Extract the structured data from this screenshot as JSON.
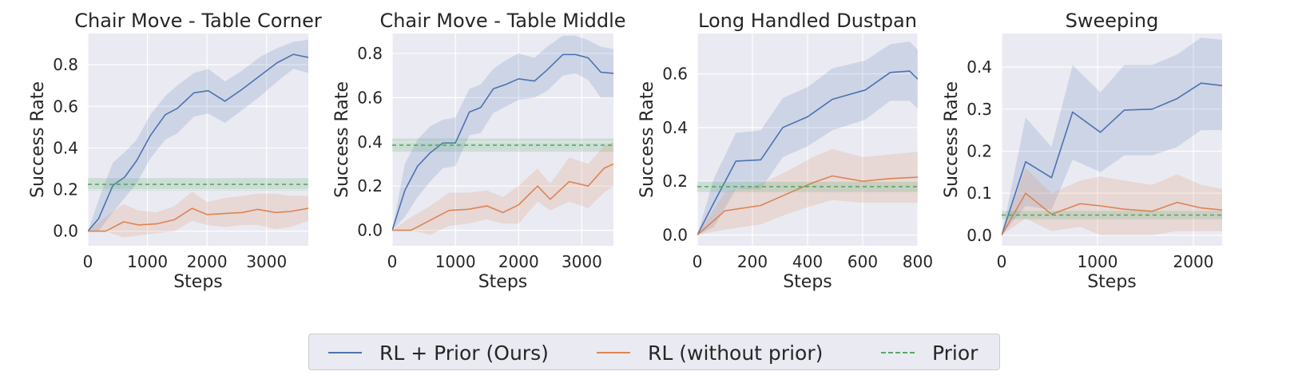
{
  "colors": {
    "rl_prior": "#4c72b0",
    "rl_no_prior": "#dd8452",
    "prior": "#55a868",
    "panel_bg": "#eaeaf2",
    "grid": "#ffffff",
    "text": "#262626"
  },
  "legend": {
    "items": [
      {
        "label": "RL + Prior (Ours)",
        "style": "solid",
        "color": "#4c72b0"
      },
      {
        "label": "RL (without prior)",
        "style": "solid",
        "color": "#dd8452"
      },
      {
        "label": "Prior",
        "style": "dashed",
        "color": "#55a868"
      }
    ]
  },
  "chart_data": [
    {
      "type": "line",
      "title": "Chair Move - Table Corner",
      "xlabel": "Steps",
      "ylabel": "Success Rate",
      "xlim": [
        0,
        3700
      ],
      "ylim": [
        -0.07,
        0.95
      ],
      "xticks": [
        0,
        1000,
        2000,
        3000
      ],
      "yticks": [
        0.0,
        0.2,
        0.4,
        0.6,
        0.8
      ],
      "ytick_labels": [
        "0.0",
        "0.2",
        "0.4",
        "0.6",
        "0.8"
      ],
      "grid": true,
      "series": [
        {
          "name": "RL + Prior (Ours)",
          "x": [
            0,
            180,
            420,
            620,
            820,
            1050,
            1300,
            1500,
            1780,
            2020,
            2300,
            2580,
            2900,
            3180,
            3450,
            3700
          ],
          "y": [
            0.0,
            0.06,
            0.22,
            0.26,
            0.34,
            0.46,
            0.56,
            0.59,
            0.665,
            0.675,
            0.625,
            0.68,
            0.75,
            0.81,
            0.85,
            0.835
          ],
          "lower": [
            0.0,
            0.0,
            0.09,
            0.16,
            0.23,
            0.35,
            0.44,
            0.47,
            0.55,
            0.565,
            0.52,
            0.58,
            0.65,
            0.72,
            0.78,
            0.76
          ],
          "upper": [
            0.0,
            0.15,
            0.33,
            0.38,
            0.44,
            0.56,
            0.65,
            0.7,
            0.76,
            0.78,
            0.72,
            0.77,
            0.84,
            0.88,
            0.91,
            0.92
          ]
        },
        {
          "name": "RL (without prior)",
          "x": [
            0,
            300,
            600,
            850,
            1150,
            1450,
            1750,
            2000,
            2300,
            2600,
            2850,
            3150,
            3400,
            3700
          ],
          "y": [
            0.0,
            0.0,
            0.045,
            0.03,
            0.035,
            0.055,
            0.11,
            0.08,
            0.085,
            0.09,
            0.105,
            0.09,
            0.095,
            0.11
          ],
          "lower": [
            0.0,
            0.0,
            -0.03,
            -0.02,
            -0.01,
            0.0,
            0.05,
            0.03,
            0.02,
            0.03,
            0.03,
            0.01,
            0.02,
            0.05
          ],
          "upper": [
            0.0,
            0.07,
            0.13,
            0.1,
            0.09,
            0.12,
            0.19,
            0.14,
            0.16,
            0.17,
            0.18,
            0.18,
            0.17,
            0.17
          ]
        },
        {
          "name": "Prior",
          "style": "dashed",
          "y_constant": 0.225,
          "band": [
            0.195,
            0.255
          ]
        }
      ]
    },
    {
      "type": "line",
      "title": "Chair Move - Table Middle",
      "xlabel": "Steps",
      "ylabel": "Success Rate",
      "xlim": [
        0,
        3500
      ],
      "ylim": [
        -0.07,
        0.89
      ],
      "xticks": [
        0,
        1000,
        2000,
        3000
      ],
      "yticks": [
        0.0,
        0.2,
        0.4,
        0.6,
        0.8
      ],
      "ytick_labels": [
        "0.0",
        "0.2",
        "0.4",
        "0.6",
        "0.8"
      ],
      "grid": true,
      "series": [
        {
          "name": "RL + Prior (Ours)",
          "x": [
            0,
            200,
            400,
            600,
            800,
            1000,
            1220,
            1400,
            1600,
            1800,
            2000,
            2250,
            2450,
            2700,
            2900,
            3100,
            3300,
            3500
          ],
          "y": [
            0.0,
            0.18,
            0.29,
            0.35,
            0.395,
            0.395,
            0.535,
            0.555,
            0.64,
            0.66,
            0.685,
            0.675,
            0.725,
            0.795,
            0.795,
            0.78,
            0.715,
            0.71
          ],
          "lower": [
            0.0,
            0.06,
            0.15,
            0.22,
            0.28,
            0.29,
            0.43,
            0.44,
            0.53,
            0.56,
            0.59,
            0.6,
            0.63,
            0.7,
            0.71,
            0.68,
            0.6,
            0.6
          ],
          "upper": [
            0.0,
            0.3,
            0.41,
            0.47,
            0.5,
            0.51,
            0.64,
            0.66,
            0.73,
            0.77,
            0.8,
            0.78,
            0.83,
            0.88,
            0.88,
            0.86,
            0.83,
            0.82
          ]
        },
        {
          "name": "RL (without prior)",
          "x": [
            0,
            300,
            600,
            900,
            1200,
            1500,
            1750,
            2000,
            2300,
            2500,
            2800,
            3100,
            3350,
            3500
          ],
          "y": [
            0.0,
            0.0,
            0.045,
            0.09,
            0.095,
            0.11,
            0.08,
            0.115,
            0.2,
            0.14,
            0.22,
            0.2,
            0.28,
            0.3
          ],
          "lower": [
            0.0,
            0.0,
            -0.02,
            0.02,
            0.03,
            0.05,
            0.03,
            0.03,
            0.13,
            0.09,
            0.13,
            0.1,
            0.17,
            0.2
          ],
          "upper": [
            0.0,
            0.06,
            0.11,
            0.17,
            0.17,
            0.18,
            0.15,
            0.2,
            0.28,
            0.21,
            0.33,
            0.3,
            0.38,
            0.4
          ]
        },
        {
          "name": "Prior",
          "style": "dashed",
          "y_constant": 0.385,
          "band": [
            0.355,
            0.415
          ]
        }
      ]
    },
    {
      "type": "line",
      "title": "Long Handled Dustpan",
      "xlabel": "Steps",
      "ylabel": "Success Rate",
      "xlim": [
        0,
        800
      ],
      "ylim": [
        -0.04,
        0.75
      ],
      "xticks": [
        0,
        200,
        400,
        600,
        800
      ],
      "yticks": [
        0.0,
        0.2,
        0.4,
        0.6
      ],
      "ytick_labels": [
        "0.0",
        "0.2",
        "0.4",
        "0.6"
      ],
      "grid": true,
      "series": [
        {
          "name": "RL + Prior (Ours)",
          "x": [
            0,
            60,
            140,
            230,
            310,
            400,
            490,
            610,
            700,
            770,
            800
          ],
          "y": [
            0.0,
            0.12,
            0.275,
            0.28,
            0.4,
            0.44,
            0.505,
            0.54,
            0.605,
            0.61,
            0.58
          ],
          "lower": [
            0.0,
            0.03,
            0.17,
            0.17,
            0.29,
            0.33,
            0.39,
            0.43,
            0.5,
            0.5,
            0.47
          ],
          "upper": [
            0.0,
            0.21,
            0.38,
            0.39,
            0.51,
            0.55,
            0.62,
            0.65,
            0.71,
            0.72,
            0.69
          ]
        },
        {
          "name": "RL (without prior)",
          "x": [
            0,
            100,
            230,
            330,
            420,
            490,
            600,
            700,
            800
          ],
          "y": [
            0.0,
            0.09,
            0.11,
            0.155,
            0.195,
            0.22,
            0.2,
            0.21,
            0.215
          ],
          "lower": [
            0.0,
            0.02,
            0.04,
            0.08,
            0.11,
            0.13,
            0.12,
            0.12,
            0.12
          ],
          "upper": [
            0.0,
            0.16,
            0.19,
            0.24,
            0.29,
            0.32,
            0.29,
            0.3,
            0.31
          ]
        },
        {
          "name": "Prior",
          "style": "dashed",
          "y_constant": 0.18,
          "band": [
            0.16,
            0.2
          ]
        }
      ]
    },
    {
      "type": "line",
      "title": "Sweeping",
      "xlabel": "Steps",
      "ylabel": "Success Rate",
      "xlim": [
        0,
        2300
      ],
      "ylim": [
        -0.025,
        0.48
      ],
      "xticks": [
        0,
        1000,
        2000
      ],
      "yticks": [
        0.0,
        0.1,
        0.2,
        0.3,
        0.4
      ],
      "ytick_labels": [
        "0.0",
        "0.1",
        "0.2",
        "0.3",
        "0.4"
      ],
      "grid": true,
      "series": [
        {
          "name": "RL + Prior (Ours)",
          "x": [
            0,
            250,
            520,
            740,
            1030,
            1280,
            1570,
            1830,
            2080,
            2300
          ],
          "y": [
            0.0,
            0.175,
            0.137,
            0.293,
            0.245,
            0.298,
            0.3,
            0.325,
            0.362,
            0.356
          ],
          "lower": [
            0.0,
            0.07,
            0.06,
            0.18,
            0.15,
            0.19,
            0.19,
            0.21,
            0.25,
            0.25
          ],
          "upper": [
            0.0,
            0.28,
            0.21,
            0.405,
            0.34,
            0.405,
            0.405,
            0.43,
            0.47,
            0.465
          ]
        },
        {
          "name": "RL (without prior)",
          "x": [
            0,
            250,
            520,
            820,
            1030,
            1280,
            1570,
            1830,
            2080,
            2300
          ],
          "y": [
            0.0,
            0.1,
            0.05,
            0.075,
            0.07,
            0.062,
            0.057,
            0.078,
            0.065,
            0.06
          ],
          "lower": [
            0.0,
            0.04,
            0.01,
            0.02,
            0.0,
            0.0,
            0.0,
            0.01,
            0.01,
            0.01
          ],
          "upper": [
            0.0,
            0.16,
            0.1,
            0.13,
            0.14,
            0.13,
            0.12,
            0.145,
            0.12,
            0.11
          ]
        },
        {
          "name": "Prior",
          "style": "dashed",
          "y_constant": 0.048,
          "band": [
            0.038,
            0.058
          ]
        }
      ]
    }
  ]
}
